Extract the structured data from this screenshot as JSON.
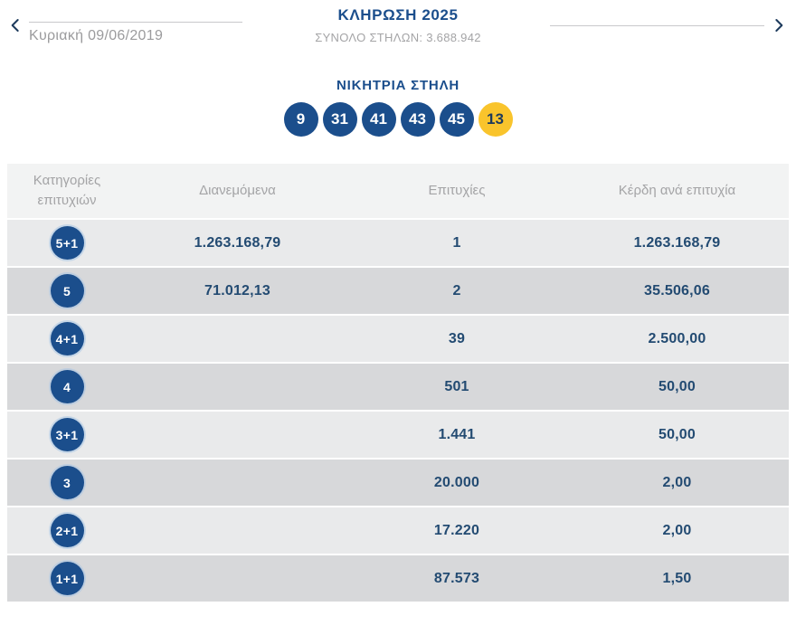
{
  "header": {
    "title": "ΚΛΗΡΩΣΗ 2025",
    "subtitle": "ΣΥΝΟΛΟ ΣΤΗΛΩΝ: 3.688.942",
    "prev_date": "Κυριακή 09/06/2019"
  },
  "winning": {
    "label": "ΝΙΚΗΤΡΙΑ ΣΤΗΛΗ",
    "numbers": [
      "9",
      "31",
      "41",
      "43",
      "45"
    ],
    "bonus": "13"
  },
  "table": {
    "headers": [
      "Κατηγορίες επιτυχιών",
      "Διανεμόμενα",
      "Επιτυχίες",
      "Κέρδη ανά επιτυχία"
    ],
    "rows": [
      {
        "category": "5+1",
        "distributed": "1.263.168,79",
        "wins": "1",
        "per_win": "1.263.168,79"
      },
      {
        "category": "5",
        "distributed": "71.012,13",
        "wins": "2",
        "per_win": "35.506,06"
      },
      {
        "category": "4+1",
        "distributed": "",
        "wins": "39",
        "per_win": "2.500,00"
      },
      {
        "category": "4",
        "distributed": "",
        "wins": "501",
        "per_win": "50,00"
      },
      {
        "category": "3+1",
        "distributed": "",
        "wins": "1.441",
        "per_win": "50,00"
      },
      {
        "category": "3",
        "distributed": "",
        "wins": "20.000",
        "per_win": "2,00"
      },
      {
        "category": "2+1",
        "distributed": "",
        "wins": "17.220",
        "per_win": "2,00"
      },
      {
        "category": "1+1",
        "distributed": "",
        "wins": "87.573",
        "per_win": "1,50"
      }
    ]
  },
  "colors": {
    "brand_blue": "#1b4e8c",
    "value_navy": "#234b72",
    "bonus_yellow": "#f9c42c",
    "chevron_navy": "#1d3a5c",
    "row_light": "#e9eaeb",
    "row_dark": "#d7d8da",
    "header_row": "#f2f3f3"
  }
}
